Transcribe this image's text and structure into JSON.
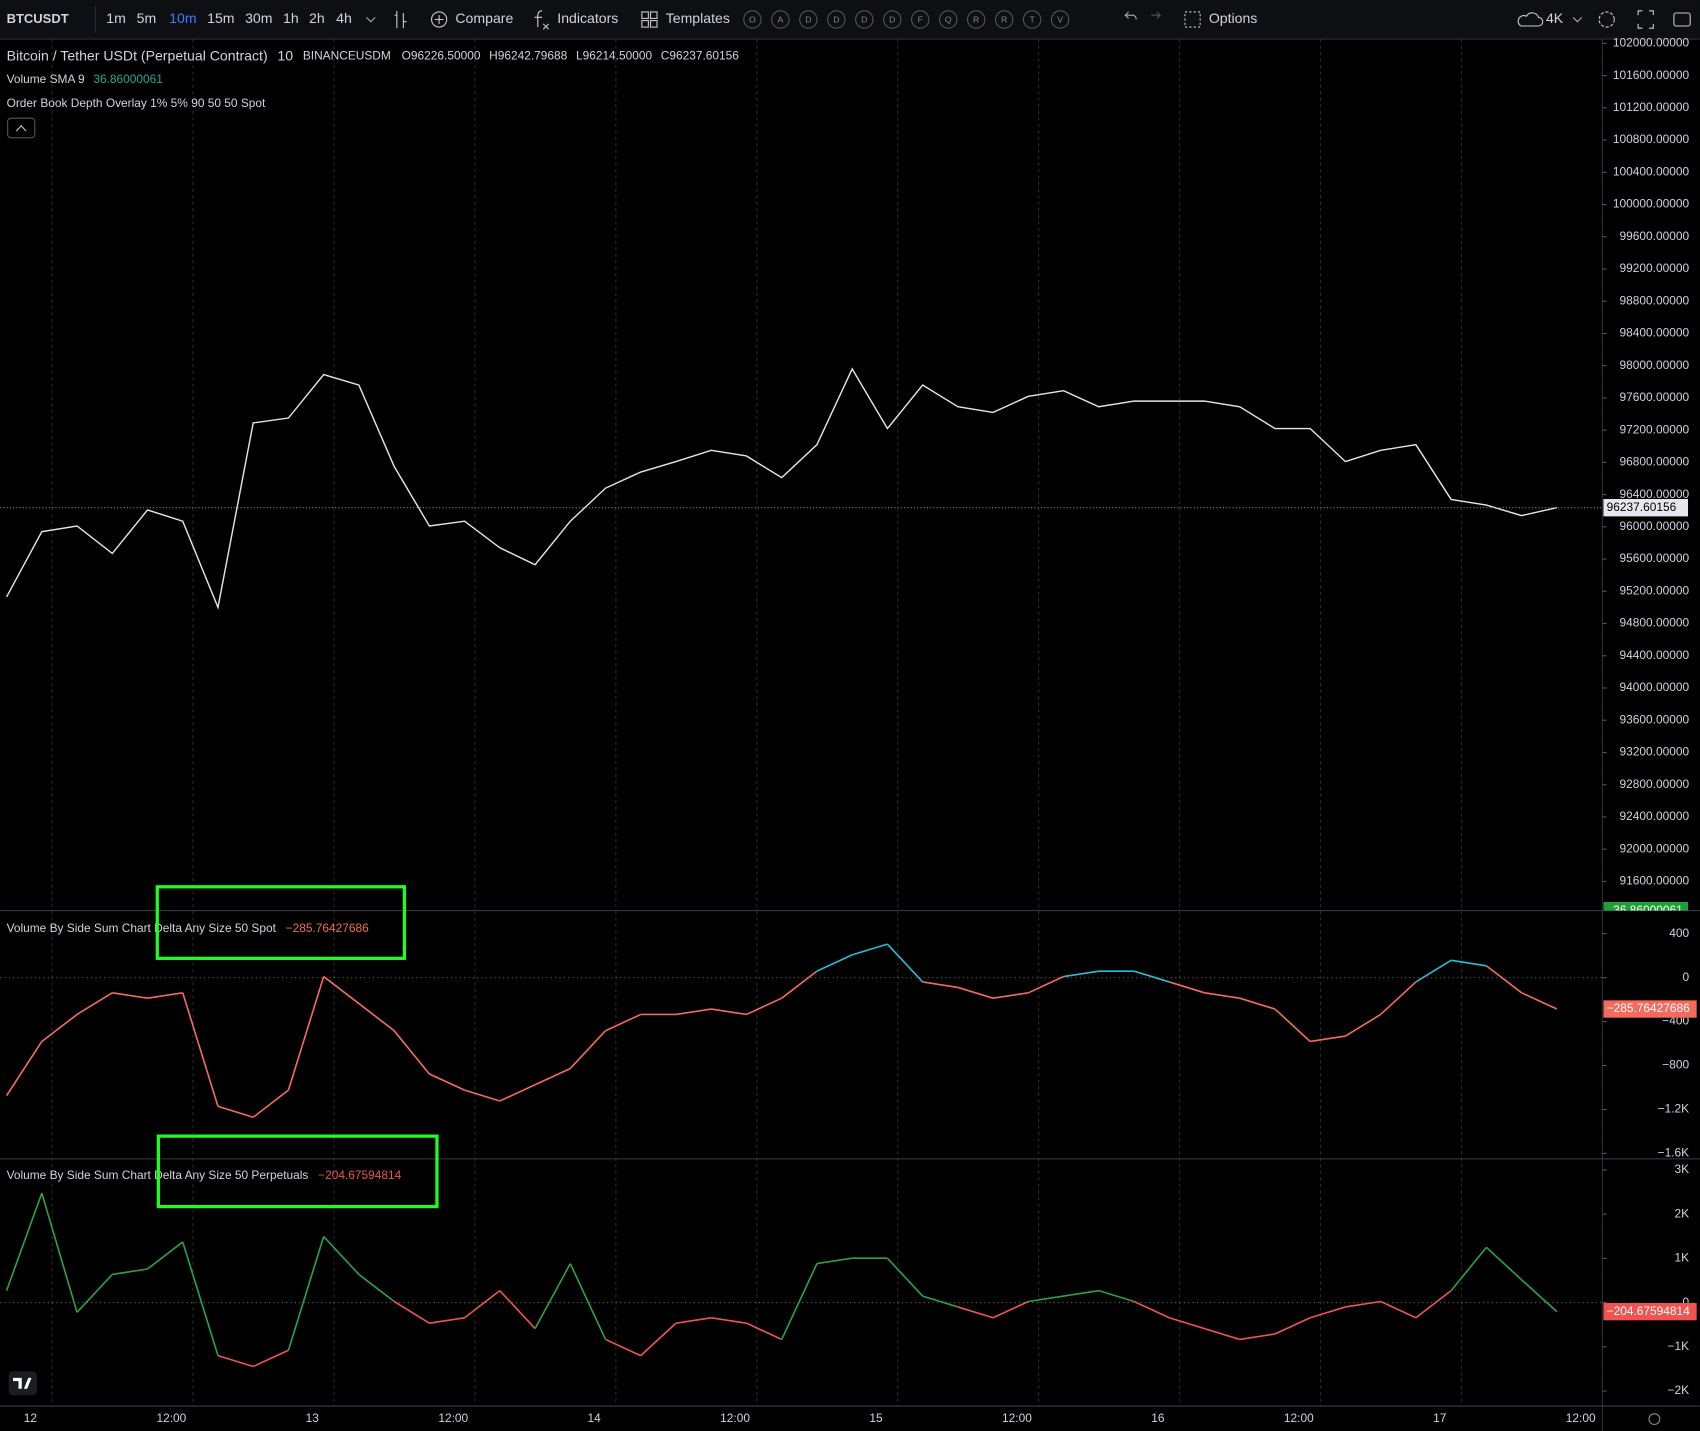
{
  "toolbar": {
    "symbol": "BTCUSDT",
    "intervals": [
      "1m",
      "5m",
      "10m",
      "15m",
      "30m",
      "1h",
      "2h",
      "4h"
    ],
    "active_interval": 2,
    "compare": "Compare",
    "indicators": "Indicators",
    "templates": "Templates",
    "letters": [
      "O",
      "A",
      "D",
      "D",
      "D",
      "D",
      "F",
      "Q",
      "R",
      "R",
      "T",
      "V"
    ],
    "options": "Options",
    "resolution": "4K"
  },
  "legend": {
    "title": "Bitcoin / Tether USDt (Perpetual Contract)",
    "interval": "10",
    "exchange": "BINANCEUSDM",
    "ohlc": [
      {
        "key": "O",
        "value": "96226.50000"
      },
      {
        "key": "H",
        "value": "96242.79688"
      },
      {
        "key": "L",
        "value": "96214.50000"
      },
      {
        "key": "C",
        "value": "96237.60156"
      }
    ],
    "volume_label": "Volume SMA 9",
    "volume_value": "36.86000061",
    "overlay": "Order Book Depth Overlay 1% 5% 90 50 50 Spot"
  },
  "main": {
    "color": "#e6e6e6",
    "ylim": [
      91237,
      102054
    ],
    "last_label": "96237.60156",
    "yticks": [
      {
        "value": 102000,
        "label": "102000.00000"
      },
      {
        "value": 101600,
        "label": "101600.00000"
      },
      {
        "value": 101200,
        "label": "101200.00000"
      },
      {
        "value": 100800,
        "label": "100800.00000"
      },
      {
        "value": 100400,
        "label": "100400.00000"
      },
      {
        "value": 100000,
        "label": "100000.00000"
      },
      {
        "value": 99600,
        "label": "99600.00000"
      },
      {
        "value": 99200,
        "label": "99200.00000"
      },
      {
        "value": 98800,
        "label": "98800.00000"
      },
      {
        "value": 98400,
        "label": "98400.00000"
      },
      {
        "value": 98000,
        "label": "98000.00000"
      },
      {
        "value": 97600,
        "label": "97600.00000"
      },
      {
        "value": 97200,
        "label": "97200.00000"
      },
      {
        "value": 96800,
        "label": "96800.00000"
      },
      {
        "value": 96400,
        "label": "96400.00000"
      },
      {
        "value": 96000,
        "label": "96000.00000"
      },
      {
        "value": 95600,
        "label": "95600.00000"
      },
      {
        "value": 95200,
        "label": "95200.00000"
      },
      {
        "value": 94800,
        "label": "94800.00000"
      },
      {
        "value": 94400,
        "label": "94400.00000"
      },
      {
        "value": 94000,
        "label": "94000.00000"
      },
      {
        "value": 93600,
        "label": "93600.00000"
      },
      {
        "value": 93200,
        "label": "93200.00000"
      },
      {
        "value": 92800,
        "label": "92800.00000"
      },
      {
        "value": 92400,
        "label": "92400.00000"
      },
      {
        "value": 92000,
        "label": "92000.00000"
      },
      {
        "value": 91600,
        "label": "91600.00000"
      }
    ],
    "values": [
      95130,
      95940,
      96010,
      95670,
      96210,
      96070,
      95000,
      97290,
      97350,
      97890,
      97760,
      96750,
      96010,
      96070,
      95740,
      95530,
      96070,
      96480,
      96680,
      96810,
      96950,
      96880,
      96610,
      97020,
      97960,
      97220,
      97760,
      97490,
      97420,
      97620,
      97690,
      97490,
      97560,
      97560,
      97560,
      97490,
      97220,
      97220,
      96810,
      96950,
      97020,
      96340,
      96270,
      96140,
      96237.60156
    ]
  },
  "spot": {
    "title": "Volume By Side Sum Chart Delta Any Size 50 Spot",
    "value_label": "−285.76427686",
    "up_color": "#2bbcd4",
    "down_color": "#f26b5b",
    "ylim": [
      -1650,
      610
    ],
    "yticks": [
      400,
      0,
      {
        "value": -400,
        "label": "−400"
      },
      {
        "value": -800,
        "label": "−800"
      },
      {
        "value": -1200,
        "label": "−1.2K"
      },
      {
        "value": -1600,
        "label": "−1.6K"
      }
    ],
    "values": [
      -1074,
      -581,
      -335,
      -138,
      -187,
      -138,
      -1172,
      -1271,
      -1024,
      10,
      -236,
      -483,
      -877,
      -1024,
      -1123,
      -975,
      -827,
      -483,
      -335,
      -335,
      -286,
      -335,
      -187,
      59,
      207,
      305,
      -39,
      -89,
      -187,
      -138,
      10,
      59,
      59,
      -39,
      -138,
      -187,
      -286,
      -581,
      -532,
      -335,
      -39,
      158,
      108,
      -138,
      -285.76427686
    ]
  },
  "perp": {
    "title": "Volume By Side Sum Chart Delta Any Size 50 Perpetuals",
    "value_label": "−204.67594814",
    "up_color": "#2ea043",
    "down_color": "#f05350",
    "ylim": [
      -2340,
      3250
    ],
    "yticks": [
      {
        "value": 3000,
        "label": "3K"
      },
      {
        "value": 2000,
        "label": "2K"
      },
      {
        "value": 1000,
        "label": "1K"
      },
      0,
      {
        "value": -1000,
        "label": "−1K"
      },
      {
        "value": -2000,
        "label": "−2K"
      }
    ],
    "values": [
      270,
      2475,
      -220,
      637,
      760,
      1372,
      -1200,
      -1445,
      -1078,
      1494,
      637,
      25,
      -465,
      -343,
      270,
      -588,
      882,
      -833,
      -1200,
      -465,
      -343,
      -465,
      -833,
      882,
      1004,
      1004,
      147,
      -98,
      -343,
      25,
      147,
      270,
      25,
      -343,
      -588,
      -833,
      -710,
      -343,
      -98,
      25,
      -343,
      270,
      1250,
      515,
      -204.67594814
    ]
  },
  "time_axis": [
    "12",
    "12:00",
    "13",
    "12:00",
    "14",
    "12:00",
    "15",
    "12:00",
    "16",
    "12:00",
    "17",
    "12:00"
  ]
}
